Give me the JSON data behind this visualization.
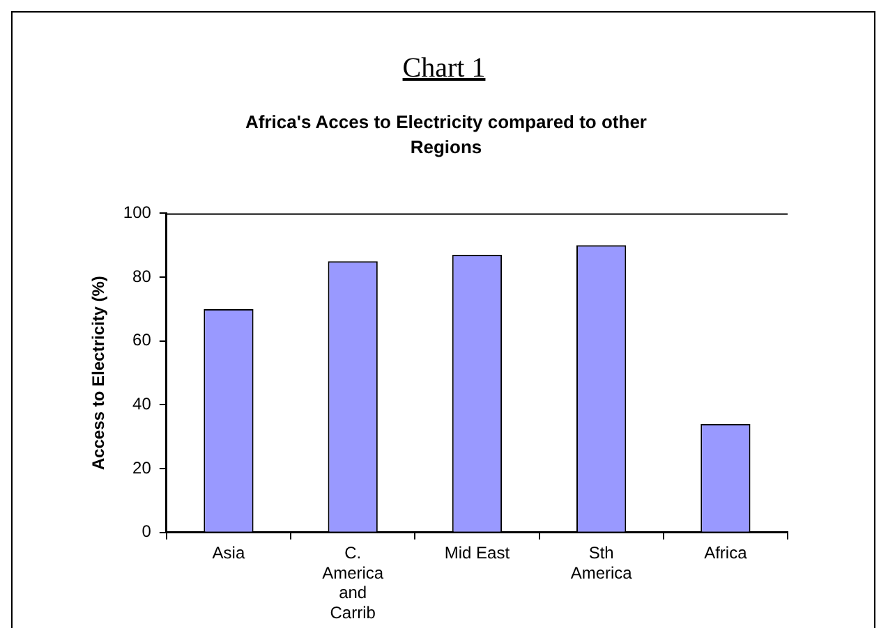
{
  "chart_data": {
    "type": "bar",
    "title": "Chart 1",
    "subtitle": "Africa's Acces to Electricity compared to other Regions",
    "ylabel": "Access to Electricity (%)",
    "categories": [
      "Asia",
      "C.\nAmerica\nand\nCarrib",
      "Mid East",
      "Sth\nAmerica",
      "Africa"
    ],
    "values": [
      70,
      85,
      87,
      90,
      34
    ],
    "color": "#9999ff",
    "ylim": [
      0,
      100
    ],
    "yticks": [
      0,
      20,
      40,
      60,
      80,
      100
    ],
    "grid": false,
    "legend": false
  }
}
